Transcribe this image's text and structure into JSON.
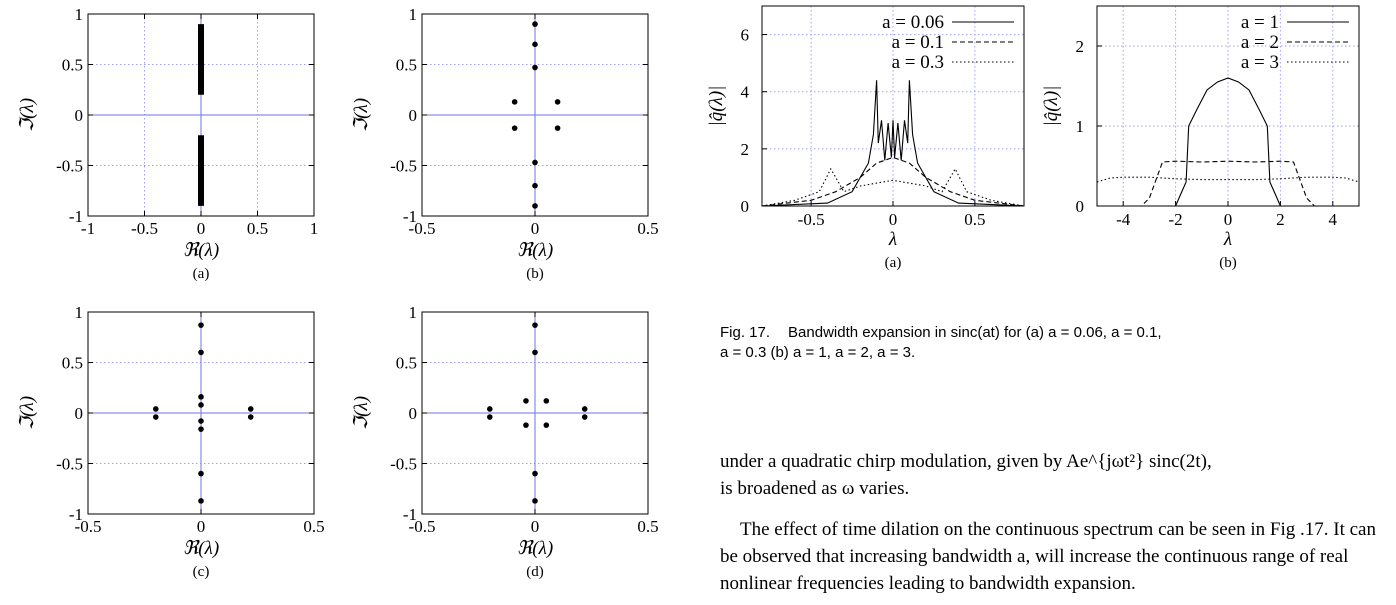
{
  "left_figure": {
    "panels": [
      {
        "sub": "(a)",
        "xlabel": "ℜ(λ)",
        "ylabel": "ℑ(λ)",
        "xlim": [
          -1,
          1
        ],
        "ylim": [
          -1,
          1
        ],
        "xticks": [
          "-1",
          "-0.5",
          "0",
          "0.5",
          "1"
        ],
        "yticks": [
          "-1",
          "-0.5",
          "0",
          "0.5",
          "1"
        ],
        "bars": [
          {
            "x": 0,
            "y0": 0.2,
            "y1": 0.9
          },
          {
            "x": 0,
            "y0": -0.9,
            "y1": -0.2
          }
        ],
        "points": []
      },
      {
        "sub": "(b)",
        "xlabel": "ℜ(λ)",
        "ylabel": "ℑ(λ)",
        "xlim": [
          -0.5,
          0.5
        ],
        "ylim": [
          -1,
          1
        ],
        "xticks": [
          "-0.5",
          "0",
          "0.5"
        ],
        "yticks": [
          "-1",
          "-0.5",
          "0",
          "0.5",
          "1"
        ],
        "bars": [],
        "points": [
          [
            0,
            0.9
          ],
          [
            0,
            0.7
          ],
          [
            0,
            0.47
          ],
          [
            0,
            -0.47
          ],
          [
            0,
            -0.7
          ],
          [
            0,
            -0.9
          ],
          [
            -0.09,
            0.13
          ],
          [
            -0.09,
            -0.13
          ],
          [
            0.1,
            0.13
          ],
          [
            0.1,
            -0.13
          ]
        ]
      },
      {
        "sub": "(c)",
        "xlabel": "ℜ(λ)",
        "ylabel": "ℑ(λ)",
        "xlim": [
          -0.5,
          0.5
        ],
        "ylim": [
          -1,
          1
        ],
        "xticks": [
          "-0.5",
          "0",
          "0.5"
        ],
        "yticks": [
          "-1",
          "-0.5",
          "0",
          "0.5",
          "1"
        ],
        "bars": [],
        "points": [
          [
            0,
            0.87
          ],
          [
            0,
            0.6
          ],
          [
            0,
            0.16
          ],
          [
            0,
            0.08
          ],
          [
            0,
            -0.08
          ],
          [
            0,
            -0.16
          ],
          [
            0,
            -0.6
          ],
          [
            0,
            -0.87
          ],
          [
            -0.2,
            0.04
          ],
          [
            -0.2,
            -0.04
          ],
          [
            0.22,
            0.04
          ],
          [
            0.22,
            -0.04
          ]
        ]
      },
      {
        "sub": "(d)",
        "xlabel": "ℜ(λ)",
        "ylabel": "ℑ(λ)",
        "xlim": [
          -0.5,
          0.5
        ],
        "ylim": [
          -1,
          1
        ],
        "xticks": [
          "-0.5",
          "0",
          "0.5"
        ],
        "yticks": [
          "-1",
          "-0.5",
          "0",
          "0.5",
          "1"
        ],
        "bars": [],
        "points": [
          [
            0,
            0.87
          ],
          [
            0,
            0.6
          ],
          [
            0,
            -0.6
          ],
          [
            0,
            -0.87
          ],
          [
            -0.04,
            0.12
          ],
          [
            -0.04,
            -0.12
          ],
          [
            0.05,
            0.12
          ],
          [
            0.05,
            -0.12
          ],
          [
            -0.2,
            0.04
          ],
          [
            -0.2,
            -0.04
          ],
          [
            0.22,
            0.04
          ],
          [
            0.22,
            -0.04
          ]
        ]
      }
    ]
  },
  "chart_data": [
    {
      "type": "line",
      "sub": "(a)",
      "xlabel": "λ",
      "ylabel": "|q̂(λ)|",
      "xlim": [
        -0.8,
        0.8
      ],
      "ylim": [
        0,
        7
      ],
      "xticks": [
        "-0.5",
        "0",
        "0.5"
      ],
      "yticks": [
        "0",
        "2",
        "4",
        "6"
      ],
      "legend_position": "top-right",
      "grid": true,
      "series": [
        {
          "name": "a = 0.06",
          "style": "solid",
          "x": [
            -0.8,
            -0.4,
            -0.25,
            -0.15,
            -0.12,
            -0.1,
            -0.09,
            -0.07,
            -0.05,
            -0.03,
            -0.01,
            0,
            0.01,
            0.03,
            0.05,
            0.07,
            0.09,
            0.1,
            0.12,
            0.15,
            0.25,
            0.4,
            0.8
          ],
          "y": [
            0,
            0.1,
            0.5,
            1.5,
            2.5,
            4.4,
            2.2,
            3.0,
            1.6,
            2.9,
            1.7,
            3.0,
            1.7,
            2.9,
            1.6,
            3.0,
            2.2,
            4.4,
            2.5,
            1.5,
            0.5,
            0.1,
            0
          ]
        },
        {
          "name": "a = 0.1",
          "style": "dashed",
          "x": [
            -0.8,
            -0.5,
            -0.35,
            -0.2,
            -0.1,
            0,
            0.1,
            0.2,
            0.35,
            0.5,
            0.8
          ],
          "y": [
            0,
            0.2,
            0.5,
            1.0,
            1.5,
            1.7,
            1.5,
            1.0,
            0.5,
            0.2,
            0
          ]
        },
        {
          "name": "a = 0.3",
          "style": "dotted",
          "x": [
            -0.8,
            -0.6,
            -0.45,
            -0.38,
            -0.3,
            -0.2,
            -0.1,
            0,
            0.1,
            0.2,
            0.3,
            0.38,
            0.45,
            0.6,
            0.8
          ],
          "y": [
            0,
            0.2,
            0.5,
            1.3,
            0.5,
            0.7,
            0.8,
            0.9,
            0.8,
            0.7,
            0.5,
            1.3,
            0.5,
            0.2,
            0
          ]
        }
      ]
    },
    {
      "type": "line",
      "sub": "(b)",
      "xlabel": "λ",
      "ylabel": "|q̂(λ)|",
      "xlim": [
        -5,
        5
      ],
      "ylim": [
        0,
        2.5
      ],
      "xticks": [
        "-4",
        "-2",
        "0",
        "2",
        "4"
      ],
      "yticks": [
        "0",
        "1",
        "2"
      ],
      "legend_position": "top-right",
      "grid": true,
      "series": [
        {
          "name": "a = 1",
          "style": "solid",
          "x": [
            -5,
            -2,
            -1.8,
            -1.6,
            -1.5,
            -1.2,
            -0.8,
            -0.4,
            0,
            0.4,
            0.8,
            1.2,
            1.5,
            1.6,
            1.8,
            2,
            5
          ],
          "y": [
            0,
            0,
            0.15,
            0.3,
            1.0,
            1.2,
            1.45,
            1.55,
            1.6,
            1.55,
            1.45,
            1.2,
            1.0,
            0.3,
            0.15,
            0,
            0
          ]
        },
        {
          "name": "a = 2",
          "style": "dashed",
          "x": [
            -5,
            -3.3,
            -3.0,
            -2.5,
            -2,
            -1,
            0,
            1,
            2,
            2.5,
            3.0,
            3.3,
            5
          ],
          "y": [
            0,
            0,
            0.1,
            0.55,
            0.56,
            0.55,
            0.56,
            0.55,
            0.56,
            0.55,
            0.1,
            0,
            0
          ]
        },
        {
          "name": "a = 3",
          "style": "dotted",
          "x": [
            -5,
            -4.5,
            -4,
            -3,
            -2,
            -1,
            0,
            1,
            2,
            3,
            4,
            4.5,
            5
          ],
          "y": [
            0.3,
            0.35,
            0.36,
            0.36,
            0.34,
            0.33,
            0.33,
            0.33,
            0.34,
            0.36,
            0.36,
            0.35,
            0.3
          ]
        }
      ]
    }
  ],
  "caption": {
    "label": "Fig. 17.",
    "line1": "Bandwidth expansion in sinc(at) for (a) a = 0.06, a = 0.1,",
    "line2": "a = 0.3 (b) a = 1, a = 2, a = 3."
  },
  "body": {
    "p1_line1": "under a quadratic chirp modulation, given by Ae^{jωt²} sinc(2t),",
    "p1_line2": "is broadened as ω varies.",
    "p2": "The effect of time dilation on the continuous spectrum can be seen in Fig .17. It can be observed that increasing bandwidth a, will increase the continuous range of real nonlinear frequencies leading to bandwidth expansion."
  }
}
